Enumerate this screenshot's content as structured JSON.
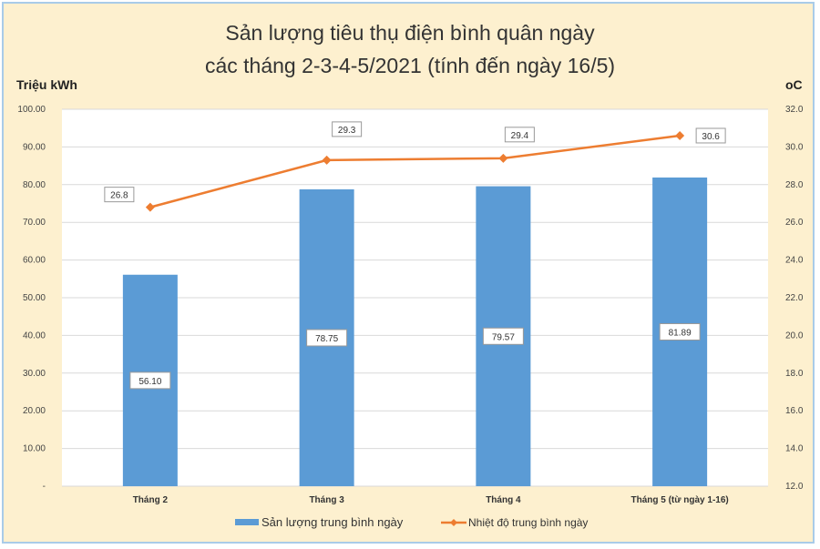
{
  "chart_data": {
    "type": "bar+line",
    "title": [
      "Sản lượng tiêu thụ điện bình quân ngày",
      "các tháng 2-3-4-5/2021 (tính đến ngày 16/5)"
    ],
    "ylabel": "Triệu kWh",
    "y2label": "oC",
    "categories": [
      "Tháng 2",
      "Tháng 3",
      "Tháng 4",
      "Tháng 5 (từ ngày 1-16)"
    ],
    "ylim": [
      0,
      100
    ],
    "y_ticks": [
      "-",
      "10.00",
      "20.00",
      "30.00",
      "40.00",
      "50.00",
      "60.00",
      "70.00",
      "80.00",
      "90.00",
      "100.00"
    ],
    "y2lim": [
      12,
      32
    ],
    "y2_ticks": [
      "12.0",
      "14.0",
      "16.0",
      "18.0",
      "20.0",
      "22.0",
      "24.0",
      "26.0",
      "28.0",
      "30.0",
      "32.0"
    ],
    "grid": true,
    "legend_position": "bottom",
    "series": [
      {
        "name": "Sản lượng trung bình ngày",
        "type": "bar",
        "axis": "left",
        "color": "#5b9bd5",
        "values": [
          56.1,
          78.75,
          79.57,
          81.89
        ],
        "labels": [
          "56.10",
          "78.75",
          "79.57",
          "81.89"
        ]
      },
      {
        "name": "Nhiệt độ trung bình ngày",
        "type": "line",
        "axis": "right",
        "color": "#ed7d31",
        "values": [
          26.8,
          29.3,
          29.4,
          30.6
        ],
        "labels": [
          "26.8",
          "29.3",
          "29.4",
          "30.6"
        ]
      }
    ]
  }
}
